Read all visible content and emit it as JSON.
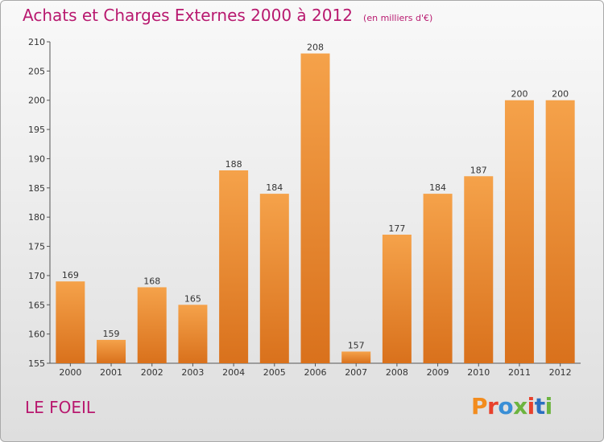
{
  "header": {
    "title": "Achats et Charges Externes 2000 à 2012",
    "unit": "(en milliers d'€)"
  },
  "commune": "LE FOEIL",
  "logo": {
    "letters": [
      "P",
      "r",
      "o",
      "x",
      "i",
      "t",
      "i"
    ],
    "colors": [
      "#f28c1e",
      "#e8412c",
      "#3a8fd6",
      "#6cb43f",
      "#e8412c",
      "#2b6fc0",
      "#6cb43f"
    ]
  },
  "colors": {
    "bar_top": "#f5a24a",
    "bar_bottom": "#d9711c",
    "title": "#b8196f"
  },
  "chart_data": {
    "type": "bar",
    "title": "Achats et Charges Externes 2000 à 2012",
    "subtitle": "(en milliers d'€)",
    "categories": [
      "2000",
      "2001",
      "2002",
      "2003",
      "2004",
      "2005",
      "2006",
      "2007",
      "2008",
      "2009",
      "2010",
      "2011",
      "2012"
    ],
    "values": [
      169,
      159,
      168,
      165,
      188,
      184,
      208,
      157,
      177,
      184,
      187,
      200,
      200
    ],
    "data_labels": [
      "169",
      "159",
      "168",
      "165",
      "188",
      "184",
      "208",
      "157",
      "177",
      "184",
      "187",
      "200",
      "200"
    ],
    "ylim": [
      155,
      210
    ],
    "yticks": [
      "155",
      "160",
      "165",
      "170",
      "175",
      "180",
      "185",
      "190",
      "195",
      "200",
      "205",
      "210"
    ],
    "grid": false,
    "legend": "none"
  }
}
